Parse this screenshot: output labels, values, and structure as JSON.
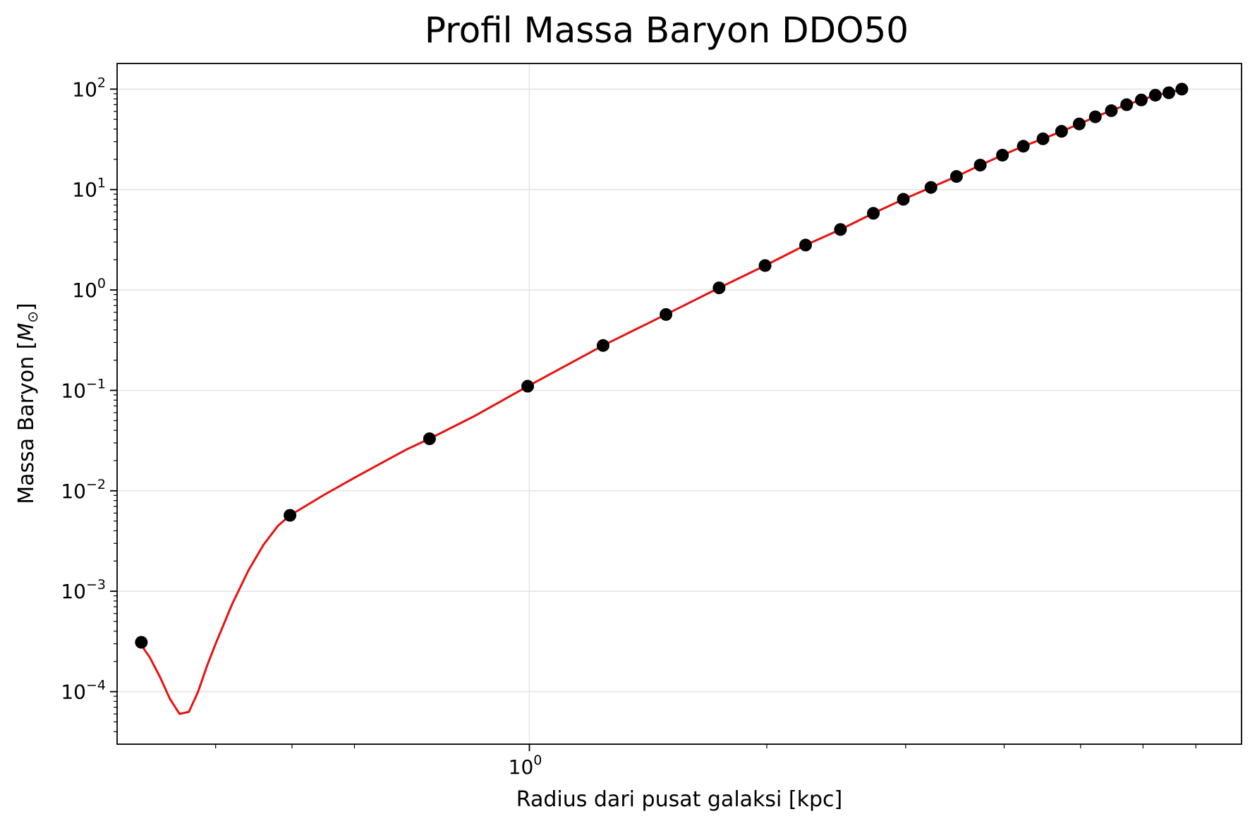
{
  "chart_data": {
    "type": "scatter",
    "title": "Profil Massa Baryon DDO50",
    "xlabel": "Radius dari pusat galaksi [kpc]",
    "ylabel": "Massa Baryon [",
    "ylabel_symbol": "M",
    "ylabel_sub": "⊙",
    "ylabel_close": "]",
    "x_scale": "log",
    "y_scale": "log",
    "xlim": [
      0.3,
      8.0
    ],
    "ylim": [
      3e-05,
      180
    ],
    "grid": true,
    "x_major_ticks": [
      {
        "value": 1,
        "base": "10",
        "exp": "0"
      }
    ],
    "x_minor_ticks": [
      0.4,
      0.5,
      0.6,
      2,
      3,
      4,
      5,
      6,
      7
    ],
    "y_major_ticks": [
      {
        "value": 0.0001,
        "base": "10",
        "exp": "−4"
      },
      {
        "value": 0.001,
        "base": "10",
        "exp": "−3"
      },
      {
        "value": 0.01,
        "base": "10",
        "exp": "−2"
      },
      {
        "value": 0.1,
        "base": "10",
        "exp": "−1"
      },
      {
        "value": 1,
        "base": "10",
        "exp": "0"
      },
      {
        "value": 10,
        "base": "10",
        "exp": "1"
      },
      {
        "value": 100,
        "base": "10",
        "exp": "2"
      }
    ],
    "series": [
      {
        "kind": "points",
        "color": "#000000",
        "x": [
          0.322,
          0.497,
          0.747,
          0.995,
          1.24,
          1.49,
          1.74,
          1.99,
          2.24,
          2.48,
          2.73,
          2.98,
          3.23,
          3.48,
          3.73,
          3.98,
          4.23,
          4.48,
          4.73,
          4.98,
          5.22,
          5.47,
          5.72,
          5.97,
          6.22,
          6.47,
          6.72
        ],
        "y": [
          0.00031,
          0.0057,
          0.033,
          0.11,
          0.28,
          0.57,
          1.05,
          1.75,
          2.8,
          4.0,
          5.8,
          8.0,
          10.5,
          13.5,
          17.5,
          22,
          27,
          32,
          38,
          45,
          53,
          61,
          70,
          78,
          87,
          92,
          100
        ]
      },
      {
        "kind": "fit-line",
        "color": "#e8110f",
        "x": [
          0.322,
          0.33,
          0.34,
          0.35,
          0.36,
          0.37,
          0.38,
          0.39,
          0.4,
          0.42,
          0.44,
          0.46,
          0.48,
          0.497,
          0.55,
          0.6,
          0.65,
          0.7,
          0.747,
          0.85,
          0.995,
          1.24,
          1.49,
          1.74,
          1.99,
          2.24,
          2.48,
          2.73,
          2.98,
          3.23,
          3.48,
          3.73,
          3.98,
          4.23,
          4.48,
          4.73,
          4.98,
          5.22,
          5.47,
          5.72,
          5.97,
          6.22,
          6.47,
          6.72
        ],
        "y": [
          0.00029,
          0.00022,
          0.00014,
          8.5e-05,
          6e-05,
          6.3e-05,
          0.0001,
          0.00018,
          0.0003,
          0.00075,
          0.0016,
          0.0029,
          0.0045,
          0.0057,
          0.0092,
          0.0135,
          0.019,
          0.026,
          0.033,
          0.055,
          0.11,
          0.28,
          0.57,
          1.05,
          1.75,
          2.8,
          4.0,
          5.8,
          8.0,
          10.5,
          13.5,
          17.5,
          22,
          27,
          32,
          38,
          45,
          53,
          61,
          70,
          78,
          87,
          92,
          100
        ]
      }
    ]
  }
}
